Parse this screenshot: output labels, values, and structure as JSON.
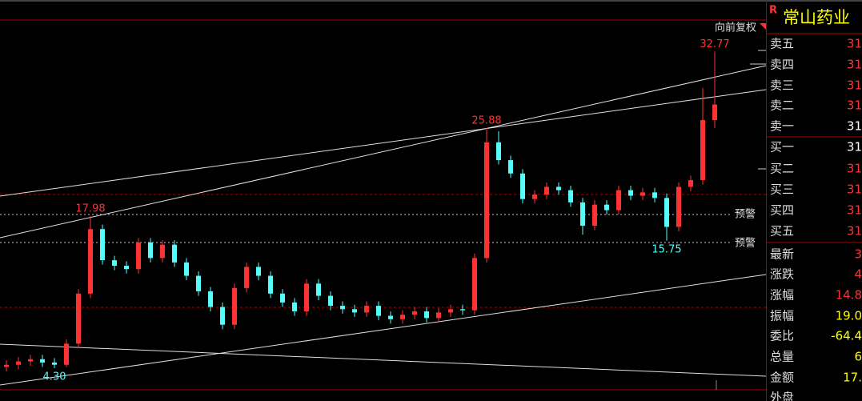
{
  "toolbar": {
    "badge": "R",
    "adjust": "向前复权"
  },
  "chart_data": {
    "type": "candlestick",
    "open": [
      4.4,
      4.6,
      4.9,
      5.1,
      4.8,
      4.6,
      6.5,
      11.0,
      16.8,
      14.0,
      13.5,
      13.2,
      15.6,
      14.2,
      15.4,
      13.8,
      12.6,
      11.2,
      9.8,
      8.2,
      11.5,
      13.4,
      12.6,
      11.0,
      10.2,
      9.4,
      11.9,
      10.8,
      9.9,
      9.6,
      9.3,
      9.9,
      9.0,
      8.7,
      9.1,
      9.4,
      8.8,
      9.3,
      9.6,
      9.5,
      14.2,
      24.6,
      23.0,
      21.8,
      19.5,
      19.9,
      20.6,
      20.3,
      19.2,
      17.1,
      19.0,
      18.5,
      20.3,
      19.8,
      20.1,
      19.6,
      17.0,
      20.6,
      21.2,
      26.6
    ],
    "high": [
      5.0,
      5.3,
      5.5,
      5.5,
      5.2,
      6.9,
      11.4,
      17.98,
      17.2,
      14.4,
      13.9,
      16.0,
      16.0,
      15.8,
      15.8,
      14.2,
      13.0,
      11.6,
      10.2,
      11.9,
      13.8,
      13.8,
      13.0,
      11.4,
      10.6,
      12.3,
      12.3,
      11.2,
      10.3,
      10.0,
      10.3,
      10.3,
      9.4,
      9.5,
      9.8,
      9.8,
      9.7,
      10.0,
      10.0,
      14.6,
      25.88,
      25.6,
      23.4,
      22.2,
      20.3,
      21.0,
      21.0,
      20.7,
      19.6,
      19.4,
      19.4,
      20.7,
      20.7,
      20.5,
      20.5,
      20.0,
      21.0,
      21.6,
      29.5,
      32.77
    ],
    "low": [
      4.0,
      4.2,
      4.5,
      4.4,
      4.3,
      4.4,
      6.1,
      10.6,
      13.6,
      13.1,
      12.8,
      12.8,
      13.8,
      13.8,
      13.4,
      12.2,
      10.8,
      9.4,
      7.8,
      7.8,
      11.1,
      12.2,
      10.6,
      9.8,
      9.0,
      9.0,
      10.4,
      9.5,
      9.2,
      8.9,
      8.9,
      8.6,
      8.3,
      8.3,
      8.7,
      8.4,
      8.4,
      8.9,
      9.1,
      9.1,
      13.8,
      22.6,
      21.4,
      19.1,
      19.1,
      19.5,
      19.9,
      18.8,
      16.3,
      16.7,
      18.1,
      18.1,
      19.4,
      19.4,
      19.2,
      15.75,
      16.6,
      20.2,
      20.8,
      25.9
    ],
    "close": [
      4.6,
      4.9,
      5.1,
      4.8,
      4.6,
      6.5,
      11.0,
      16.8,
      14.0,
      13.5,
      13.2,
      15.6,
      14.2,
      15.4,
      13.8,
      12.6,
      11.2,
      9.8,
      8.2,
      11.5,
      13.4,
      12.6,
      11.0,
      10.2,
      9.4,
      11.9,
      10.8,
      9.9,
      9.6,
      9.3,
      9.9,
      9.0,
      8.7,
      9.1,
      9.4,
      8.8,
      9.3,
      9.6,
      9.5,
      14.2,
      24.6,
      23.0,
      21.8,
      19.5,
      19.9,
      20.6,
      20.3,
      19.2,
      17.1,
      19.0,
      18.5,
      20.3,
      19.8,
      20.1,
      19.6,
      17.0,
      20.6,
      21.2,
      26.6,
      28.0
    ],
    "ylim": [
      2.35,
      35.6
    ],
    "up_color": "#ff3232",
    "down_color": "#54fcfc",
    "annotations": [
      {
        "value": 32.77,
        "label": "32.77"
      },
      {
        "value": 25.88,
        "label": "25.88"
      },
      {
        "value": 17.98,
        "label": "17.98"
      },
      {
        "value": 15.75,
        "label": "15.75"
      },
      {
        "value": 4.3,
        "label": "4.30"
      }
    ],
    "alerts": [
      {
        "label": "预警"
      },
      {
        "label": "预警"
      }
    ]
  },
  "quote_panel": {
    "name": "常山药业",
    "rows": [
      {
        "label": "卖五",
        "value": "31",
        "color": "#ff3232"
      },
      {
        "label": "卖四",
        "value": "31",
        "color": "#ff3232"
      },
      {
        "label": "卖三",
        "value": "31",
        "color": "#ff3232"
      },
      {
        "label": "卖二",
        "value": "31",
        "color": "#ff3232"
      },
      {
        "label": "卖一",
        "value": "31",
        "color": "#ffffff"
      },
      {
        "label": "买一",
        "value": "31",
        "color": "#ffffff"
      },
      {
        "label": "买二",
        "value": "31",
        "color": "#ff3232"
      },
      {
        "label": "买三",
        "value": "31",
        "color": "#ff3232"
      },
      {
        "label": "买四",
        "value": "31",
        "color": "#ff3232"
      },
      {
        "label": "买五",
        "value": "31",
        "color": "#ff3232"
      },
      {
        "label": "最新",
        "value": "3",
        "color": "#ff3232"
      },
      {
        "label": "涨跌",
        "value": "4",
        "color": "#ff3232"
      },
      {
        "label": "涨幅",
        "value": "14.8",
        "color": "#ff3232"
      },
      {
        "label": "振幅",
        "value": "19.0",
        "color": "#ffff00"
      },
      {
        "label": "委比",
        "value": "-64.4",
        "color": "#ffff00"
      },
      {
        "label": "总量",
        "value": "6",
        "color": "#ffff00"
      },
      {
        "label": "金额",
        "value": "17.",
        "color": "#ffff00"
      },
      {
        "label": "外盘",
        "value": "",
        "color": "#ff3232"
      }
    ]
  }
}
